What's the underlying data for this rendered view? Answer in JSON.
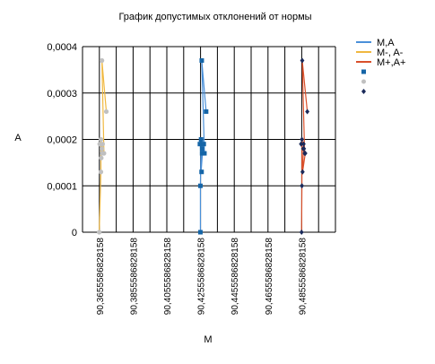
{
  "chart_data": {
    "type": "line",
    "title": "График допустимых отклонений от нормы",
    "xlabel": "M",
    "ylabel": "A",
    "ylim": [
      0,
      0.0004
    ],
    "xlim": [
      90.355586828158,
      90.505586828158
    ],
    "grid": true,
    "legend_position": "top-right",
    "x_ticks": [
      "90,3655586828158",
      "90,3855586828158",
      "90,4055586828158",
      "90,4255586828158",
      "90,4455586828158",
      "90,4655586828158",
      "90,4855586828158"
    ],
    "y_ticks": [
      "0",
      "0,0001",
      "0,0002",
      "0,0003",
      "0,0004"
    ],
    "series": [
      {
        "name": "M,A",
        "color": "#4a90d9",
        "kind": "line",
        "points": [
          [
            90.4255,
            0
          ],
          [
            90.4255,
            0.0001
          ],
          [
            90.4259,
            0.0002
          ],
          [
            90.4269,
            0.00018
          ],
          [
            90.4259,
            0.00013
          ],
          [
            90.4265,
            0.00017
          ],
          [
            90.4263,
            0.00019
          ],
          [
            90.4279,
            0.00017
          ],
          [
            90.4263,
            0.00037
          ],
          [
            90.4289,
            0.00026
          ]
        ]
      },
      {
        "name": "M-, A-",
        "color": "#f0b840",
        "kind": "line",
        "points": [
          [
            90.3655,
            0
          ],
          [
            90.3665,
            0.00013
          ],
          [
            90.3665,
            0.0002
          ],
          [
            90.3673,
            0.00017
          ],
          [
            90.3675,
            0.00019
          ],
          [
            90.3671,
            0.00018
          ],
          [
            90.3683,
            0.00017
          ],
          [
            90.3671,
            0.00037
          ],
          [
            90.3697,
            0.00026
          ]
        ]
      },
      {
        "name": "M+,A+",
        "color": "#d9502b",
        "kind": "line",
        "points": [
          [
            90.4855,
            0
          ],
          [
            90.4857,
            0.0001
          ],
          [
            90.4857,
            0.0002
          ],
          [
            90.4877,
            0.00017
          ],
          [
            90.4861,
            0.00013
          ],
          [
            90.4867,
            0.00019
          ],
          [
            90.4865,
            0.00018
          ],
          [
            90.4873,
            0.00017
          ],
          [
            90.4859,
            0.00037
          ],
          [
            90.4889,
            0.00026
          ]
        ]
      },
      {
        "color": "#1565a7",
        "kind": "square",
        "points": [
          [
            90.4255,
            0
          ],
          [
            90.4255,
            0.0001
          ],
          [
            90.4252,
            0.00019
          ],
          [
            90.4259,
            0.0002
          ],
          [
            90.4263,
            0.00019
          ],
          [
            90.4265,
            0.00018
          ],
          [
            90.4269,
            0.00017
          ],
          [
            90.4265,
            0.00017
          ],
          [
            90.4262,
            0.00013
          ],
          [
            90.4275,
            0.00019
          ],
          [
            90.4279,
            0.00017
          ],
          [
            90.4263,
            0.00037
          ],
          [
            90.4289,
            0.00026
          ]
        ]
      },
      {
        "color": "#c0c0c0",
        "kind": "circle",
        "points": [
          [
            90.3655,
            0
          ],
          [
            90.3658,
            0.00019
          ],
          [
            90.3665,
            0.0002
          ],
          [
            90.3665,
            0.00013
          ],
          [
            90.3667,
            0.00016
          ],
          [
            90.3671,
            0.00018
          ],
          [
            90.3675,
            0.00019
          ],
          [
            90.3673,
            0.00017
          ],
          [
            90.3683,
            0.00017
          ],
          [
            90.3671,
            0.00037
          ],
          [
            90.3697,
            0.00026
          ]
        ]
      },
      {
        "color": "#1a2a5a",
        "kind": "diamond",
        "points": [
          [
            90.4855,
            0
          ],
          [
            90.4852,
            0.00019
          ],
          [
            90.4857,
            0.0001
          ],
          [
            90.4857,
            0.0002
          ],
          [
            90.4861,
            0.00013
          ],
          [
            90.4865,
            0.00018
          ],
          [
            90.4867,
            0.00019
          ],
          [
            90.4869,
            0.00018
          ],
          [
            90.4873,
            0.00017
          ],
          [
            90.4877,
            0.00017
          ],
          [
            90.4859,
            0.00037
          ],
          [
            90.4889,
            0.00026
          ]
        ]
      }
    ]
  }
}
